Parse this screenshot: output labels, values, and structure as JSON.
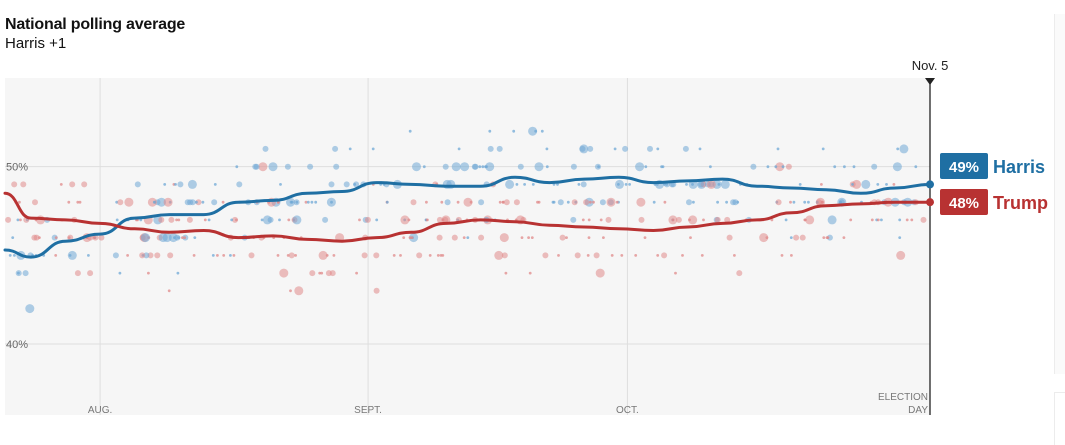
{
  "header": {
    "title": "National polling average",
    "leader_text": "Harris +1"
  },
  "colors": {
    "harris": "#1f6fa3",
    "trump": "#b83232",
    "harris_dots": "#6fa8d6",
    "trump_dots": "#e08a8a",
    "plot_bg": "#f6f6f6"
  },
  "chart_data": {
    "type": "line",
    "title": "National polling average",
    "subtitle": "Harris +1",
    "x_tick_labels": [
      "AUG.",
      "SEPT.",
      "OCT.",
      "ELECTION DAY"
    ],
    "y_tick_labels": [
      "50%",
      "40%"
    ],
    "ylim": [
      36,
      55
    ],
    "event_label": "Nov. 5",
    "grid": true,
    "x_start": "2024-07-21",
    "series": [
      {
        "name": "Harris",
        "end_label": "49%",
        "x": [
          "2024-07-21",
          "2024-07-24",
          "2024-07-28",
          "2024-08-01",
          "2024-08-05",
          "2024-08-09",
          "2024-08-13",
          "2024-08-17",
          "2024-08-21",
          "2024-08-25",
          "2024-08-29",
          "2024-09-02",
          "2024-09-06",
          "2024-09-10",
          "2024-09-14",
          "2024-09-18",
          "2024-09-22",
          "2024-09-26",
          "2024-09-30",
          "2024-10-04",
          "2024-10-08",
          "2024-10-12",
          "2024-10-16",
          "2024-10-20",
          "2024-10-24",
          "2024-10-28",
          "2024-11-01",
          "2024-11-05"
        ],
        "values": [
          45.3,
          44.9,
          45.8,
          46.2,
          47.1,
          47.3,
          47.3,
          48.0,
          48.1,
          48.5,
          48.6,
          49.1,
          49.0,
          48.9,
          48.9,
          49.4,
          49.1,
          49.3,
          49.4,
          49.1,
          49.2,
          49.3,
          48.9,
          48.8,
          48.7,
          48.5,
          48.8,
          49.0
        ]
      },
      {
        "name": "Trump",
        "end_label": "48%",
        "x": [
          "2024-07-21",
          "2024-07-24",
          "2024-07-28",
          "2024-08-01",
          "2024-08-05",
          "2024-08-09",
          "2024-08-13",
          "2024-08-17",
          "2024-08-21",
          "2024-08-25",
          "2024-08-29",
          "2024-09-02",
          "2024-09-06",
          "2024-09-10",
          "2024-09-14",
          "2024-09-18",
          "2024-09-22",
          "2024-09-26",
          "2024-09-30",
          "2024-10-04",
          "2024-10-08",
          "2024-10-12",
          "2024-10-16",
          "2024-10-20",
          "2024-10-24",
          "2024-10-28",
          "2024-11-01",
          "2024-11-05"
        ],
        "values": [
          48.5,
          47.1,
          47.0,
          46.8,
          46.5,
          46.3,
          46.4,
          46.0,
          46.1,
          45.9,
          45.8,
          46.0,
          46.3,
          46.8,
          47.0,
          46.9,
          46.7,
          46.6,
          46.5,
          46.4,
          46.6,
          46.8,
          47.0,
          47.4,
          47.8,
          47.9,
          48.0,
          48.0
        ]
      }
    ]
  }
}
